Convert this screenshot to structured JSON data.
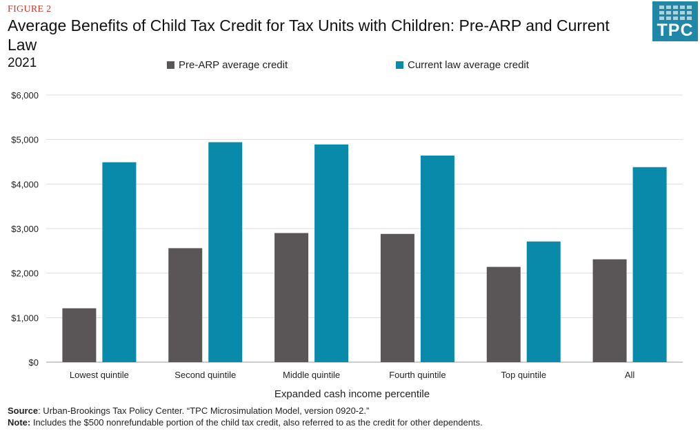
{
  "figure_label": "FIGURE 2",
  "title": "Average Benefits of Child Tax Credit for Tax Units with Children: Pre-ARP and Current Law",
  "subtitle": "2021",
  "logo_text": "TPC",
  "colors": {
    "pre_arp": "#5a5556",
    "current_law": "#0a8aab",
    "gridline": "#dcdcdc",
    "figure_label": "#c0392b"
  },
  "footer": {
    "source_label": "Source",
    "source_text": ": Urban-Brookings Tax Policy Center. “TPC Microsimulation Model, version 0920-2.”",
    "note_label": "Note:",
    "note_text": " Includes the $500 nonrefundable  portion of the child  tax credit, also referred to as the credit for other dependents."
  },
  "chart_data": {
    "type": "bar",
    "title": "Average Benefits of Child Tax Credit for Tax Units with Children: Pre-ARP and Current Law",
    "xlabel": "Expanded cash income percentile",
    "ylabel": "",
    "categories": [
      "Lowest quintile",
      "Second quintile",
      "Middle quintile",
      "Fourth quintile",
      "Top quintile",
      "All"
    ],
    "series": [
      {
        "name": "Pre-ARP average credit",
        "values": [
          1210,
          2560,
          2900,
          2880,
          2140,
          2310
        ]
      },
      {
        "name": "Current law average credit",
        "values": [
          4490,
          4940,
          4890,
          4640,
          2710,
          4380
        ]
      }
    ],
    "ylim": [
      0,
      6000
    ],
    "yticks": [
      0,
      1000,
      2000,
      3000,
      4000,
      5000,
      6000
    ],
    "ytick_labels": [
      "$0",
      "$1,000",
      "$2,000",
      "$3,000",
      "$4,000",
      "$5,000",
      "$6,000"
    ],
    "grid": true,
    "legend_position": "top"
  }
}
